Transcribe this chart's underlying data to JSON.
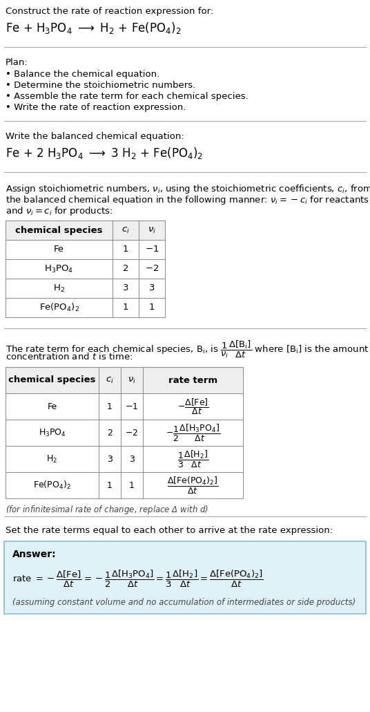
{
  "bg_color": "#ffffff",
  "answer_bg_color": "#dff0f7",
  "answer_border_color": "#8bbdd0",
  "text_color": "#000000",
  "gray_text": "#444444",
  "line_color": "#aaaaaa",
  "table_line_color": "#888888",
  "header_bg": "#eeeeee",
  "section1_title": "Construct the rate of reaction expression for:",
  "plan_title": "Plan:",
  "plan_items": [
    "• Balance the chemical equation.",
    "• Determine the stoichiometric numbers.",
    "• Assemble the rate term for each chemical species.",
    "• Write the rate of reaction expression."
  ],
  "balanced_title": "Write the balanced chemical equation:",
  "stoich_intro_lines": [
    "Assign stoichiometric numbers, $\\nu_i$, using the stoichiometric coefficients, $c_i$, from",
    "the balanced chemical equation in the following manner: $\\nu_i = -c_i$ for reactants",
    "and $\\nu_i = c_i$ for products:"
  ],
  "table1_headers": [
    "chemical species",
    "$c_i$",
    "$\\nu_i$"
  ],
  "table1_data": [
    [
      "Fe",
      "1",
      "$-1$"
    ],
    [
      "$\\mathrm{H_3PO_4}$",
      "2",
      "$-2$"
    ],
    [
      "$\\mathrm{H_2}$",
      "3",
      "3"
    ],
    [
      "$\\mathrm{Fe(PO_4)_2}$",
      "1",
      "1"
    ]
  ],
  "rate_intro_lines": [
    "The rate term for each chemical species, $\\mathrm{B_i}$, is $\\dfrac{1}{\\nu_i}\\dfrac{\\Delta[\\mathrm{B_i}]}{\\Delta t}$ where $[\\mathrm{B_i}]$ is the amount",
    "concentration and $t$ is time:"
  ],
  "table2_headers": [
    "chemical species",
    "$c_i$",
    "$\\nu_i$",
    "rate term"
  ],
  "table2_data": [
    [
      "Fe",
      "1",
      "$-1$",
      "$-\\dfrac{\\Delta[\\mathrm{Fe}]}{\\Delta t}$"
    ],
    [
      "$\\mathrm{H_3PO_4}$",
      "2",
      "$-2$",
      "$-\\dfrac{1}{2}\\dfrac{\\Delta[\\mathrm{H_3PO_4}]}{\\Delta t}$"
    ],
    [
      "$\\mathrm{H_2}$",
      "3",
      "3",
      "$\\dfrac{1}{3}\\dfrac{\\Delta[\\mathrm{H_2}]}{\\Delta t}$"
    ],
    [
      "$\\mathrm{Fe(PO_4)_2}$",
      "1",
      "1",
      "$\\dfrac{\\Delta[\\mathrm{Fe(PO_4)_2}]}{\\Delta t}$"
    ]
  ],
  "infinitesimal_note": "(for infinitesimal rate of change, replace Δ with $d$)",
  "set_equal_text": "Set the rate terms equal to each other to arrive at the rate expression:",
  "answer_label": "Answer:",
  "answer_note": "(assuming constant volume and no accumulation of intermediates or side products)"
}
